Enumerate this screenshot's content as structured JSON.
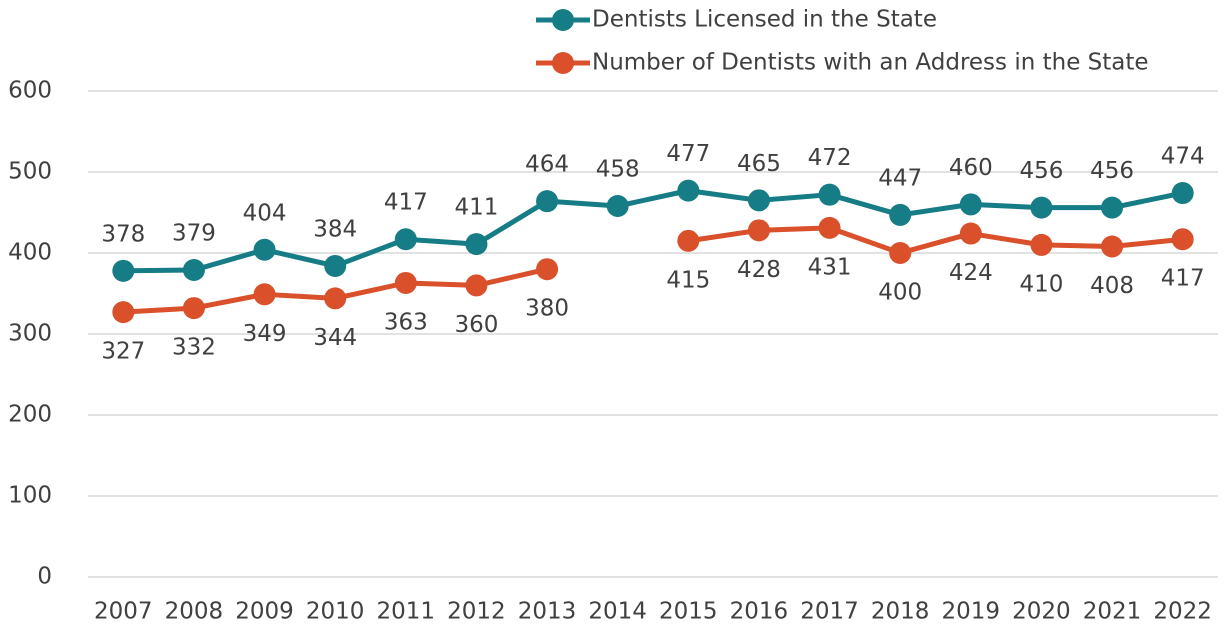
{
  "chart_data": {
    "type": "line",
    "categories": [
      "2007",
      "2008",
      "2009",
      "2010",
      "2011",
      "2012",
      "2013",
      "2014",
      "2015",
      "2016",
      "2017",
      "2018",
      "2019",
      "2020",
      "2021",
      "2022"
    ],
    "series": [
      {
        "name": "Dentists Licensed in the State",
        "color": "#167c85",
        "values": [
          378,
          379,
          404,
          384,
          417,
          411,
          464,
          458,
          477,
          465,
          472,
          447,
          460,
          456,
          456,
          474
        ]
      },
      {
        "name": "Number of Dentists with an Address in the State",
        "color": "#d9502b",
        "values": [
          327,
          332,
          349,
          344,
          363,
          360,
          380,
          null,
          415,
          428,
          431,
          400,
          424,
          410,
          408,
          417
        ]
      }
    ],
    "ylim": [
      0,
      600
    ],
    "yticks": [
      0,
      100,
      200,
      300,
      400,
      500,
      600
    ],
    "grid": true,
    "legend": "top-right"
  }
}
